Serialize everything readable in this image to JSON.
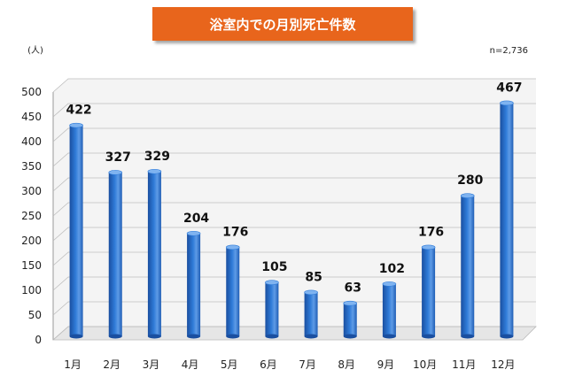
{
  "chart_data": {
    "type": "bar",
    "title": "浴室内での月別死亡件数",
    "unit_label": "(人)",
    "note": "n=2,736",
    "categories": [
      "1月",
      "2月",
      "3月",
      "4月",
      "5月",
      "6月",
      "7月",
      "8月",
      "9月",
      "10月",
      "11月",
      "12月"
    ],
    "values": [
      422,
      327,
      329,
      204,
      176,
      105,
      85,
      63,
      102,
      176,
      280,
      467
    ],
    "ylim": [
      0,
      500
    ],
    "yticks": [
      0,
      50,
      100,
      150,
      200,
      250,
      300,
      350,
      400,
      450,
      500
    ],
    "grid": true,
    "legend": "none",
    "colors": {
      "title_bg": "#E8651A",
      "title_text": "#ffffff",
      "bar_dark": "#1A4FA0",
      "bar_mid": "#2F7BD8",
      "bar_light": "#7FB3F0",
      "grid": "#bdbdbd",
      "wall": "#f3f3f3"
    }
  }
}
